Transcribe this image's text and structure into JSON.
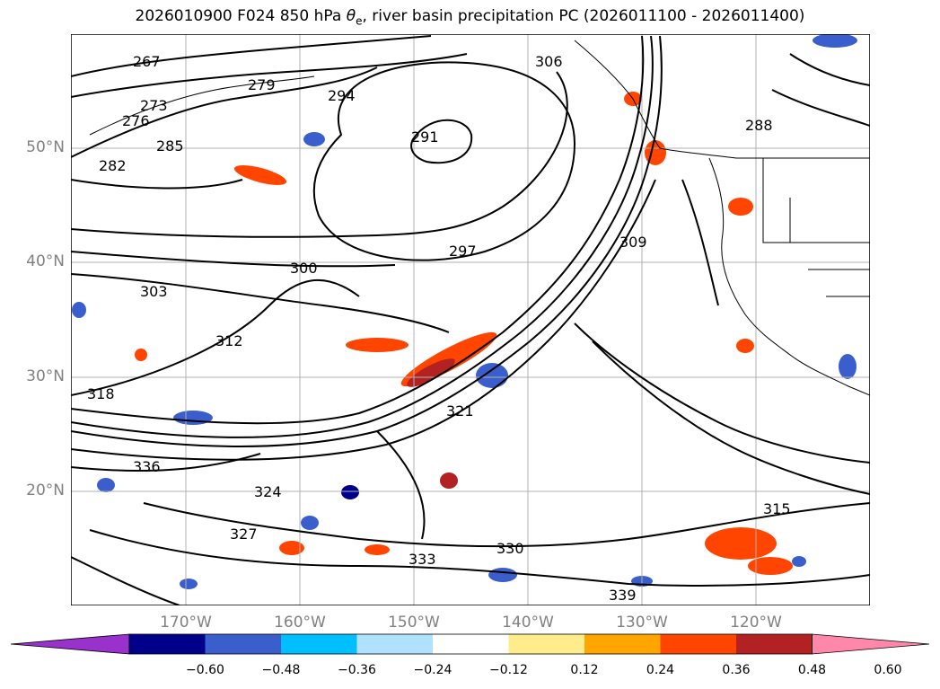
{
  "title_main": "2026010900 F024 850 hPa ",
  "title_theta": "θ",
  "title_sub": "e",
  "title_rest": ", river basin precipitation PC (2026011100 - 2026011400)",
  "axes": {
    "lat_labels": [
      "50°N",
      "40°N",
      "30°N",
      "20°N"
    ],
    "lon_labels": [
      "170°W",
      "160°W",
      "150°W",
      "140°W",
      "130°W",
      "120°W"
    ]
  },
  "contour_labels": [
    {
      "text": "267"
    },
    {
      "text": "273"
    },
    {
      "text": "276"
    },
    {
      "text": "279"
    },
    {
      "text": "282"
    },
    {
      "text": "285"
    },
    {
      "text": "288"
    },
    {
      "text": "291"
    },
    {
      "text": "294"
    },
    {
      "text": "297"
    },
    {
      "text": "300"
    },
    {
      "text": "303"
    },
    {
      "text": "306"
    },
    {
      "text": "309"
    },
    {
      "text": "312"
    },
    {
      "text": "315"
    },
    {
      "text": "318"
    },
    {
      "text": "321"
    },
    {
      "text": "324"
    },
    {
      "text": "327"
    },
    {
      "text": "330"
    },
    {
      "text": "333"
    },
    {
      "text": "336"
    },
    {
      "text": "339"
    }
  ],
  "colorbar": {
    "colors": [
      "#9932cc",
      "#00008b",
      "#3a5fcd",
      "#00bfff",
      "#b0e2ff",
      "#ffffff",
      "#ffec8b",
      "#ffa500",
      "#ff4500",
      "#b22222",
      "#ff88aa"
    ],
    "tick_labels": [
      "−0.60",
      "−0.48",
      "−0.36",
      "−0.24",
      "−0.12",
      "0.12",
      "0.24",
      "0.36",
      "0.48",
      "0.60"
    ]
  }
}
